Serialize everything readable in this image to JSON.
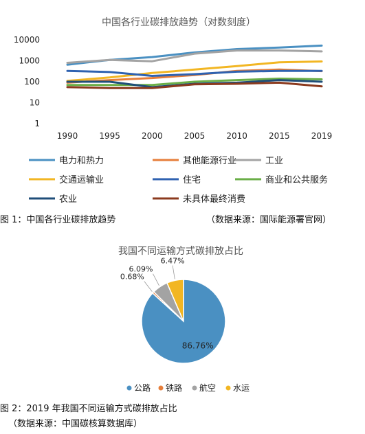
{
  "figure1": {
    "caption": "图 1：中国各行业碳排放趋势",
    "source": "（数据来源：国际能源署官网）"
  },
  "figure2": {
    "caption_line1": "图 2：2019 年我国不同运输方式碳排放占比",
    "caption_line2": "（数据来源：中国碳核算数据库）"
  },
  "chart_data": [
    {
      "type": "line",
      "title": "中国各行业碳排放趋势（对数刻度）",
      "yscale": "log",
      "ylim": [
        1,
        10000
      ],
      "yticks": [
        "1",
        "10",
        "100",
        "1000",
        "10000"
      ],
      "grid": false,
      "legend_position": "bottom",
      "categories": [
        "1990",
        "1995",
        "2000",
        "2005",
        "2010",
        "2015",
        "2019"
      ],
      "series": [
        {
          "name": "电力和热力",
          "color": "#4a90c2",
          "values": [
            650,
            1100,
            1500,
            2500,
            3600,
            4300,
            5300
          ]
        },
        {
          "name": "其他能源行业",
          "color": "#e67e3a",
          "values": [
            90,
            120,
            150,
            210,
            330,
            380,
            320
          ]
        },
        {
          "name": "工业",
          "color": "#a3a3a3",
          "values": [
            800,
            1100,
            950,
            2200,
            3100,
            3100,
            2800
          ]
        },
        {
          "name": "交通运输业",
          "color": "#f2b623",
          "values": [
            110,
            160,
            260,
            380,
            560,
            850,
            930
          ]
        },
        {
          "name": "住宅",
          "color": "#2f62b0",
          "values": [
            330,
            290,
            190,
            230,
            300,
            330,
            330
          ]
        },
        {
          "name": "商业和公共服务",
          "color": "#6aae47",
          "values": [
            70,
            70,
            70,
            100,
            120,
            140,
            130
          ]
        },
        {
          "name": "农业",
          "color": "#1f4e79",
          "values": [
            100,
            100,
            55,
            80,
            90,
            120,
            100
          ]
        },
        {
          "name": "未具体最终消费",
          "color": "#8b3a1e",
          "values": [
            55,
            50,
            50,
            75,
            80,
            90,
            60
          ]
        }
      ]
    },
    {
      "type": "pie",
      "title": "我国不同运输方式碳排放占比",
      "legend_position": "bottom",
      "categories": [
        "公路",
        "铁路",
        "航空",
        "水运"
      ],
      "values": [
        86.76,
        0.68,
        6.09,
        6.47
      ],
      "labels": [
        "86.76%",
        "0.68%",
        "6.09%",
        "6.47%"
      ],
      "colors": [
        "#4a90c2",
        "#e67e3a",
        "#a3a3a3",
        "#f2b623"
      ]
    }
  ]
}
